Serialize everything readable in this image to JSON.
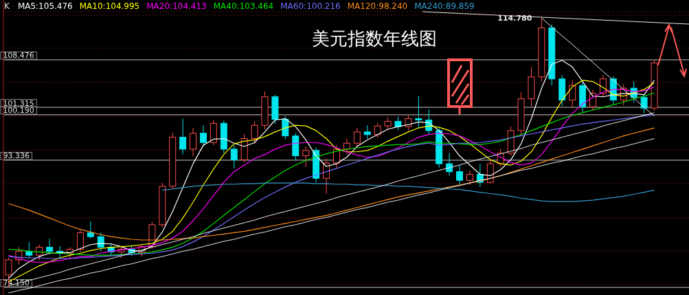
{
  "chart_data": {
    "type": "candlestick",
    "title": "美元指数年线图",
    "legend_title": "K",
    "legend": "top left",
    "grid": "y",
    "categories": [
      null,
      null,
      null,
      null,
      null,
      null,
      null,
      null,
      null,
      null,
      null,
      null,
      null,
      null,
      null,
      null,
      null,
      null,
      null,
      null,
      null,
      null,
      null,
      null,
      null,
      null,
      null,
      null,
      null,
      null,
      null,
      null,
      null,
      null,
      null,
      null,
      null,
      null,
      null,
      null,
      null,
      null,
      null,
      null,
      null,
      null,
      null,
      null,
      null,
      null,
      null,
      null,
      null,
      null,
      null,
      null,
      null,
      null,
      null,
      null,
      null,
      null,
      null,
      null
    ],
    "ohlc": [
      [
        76.02,
        78.6,
        74.15,
        78.3
      ],
      [
        78.3,
        80.2,
        77.6,
        79.6
      ],
      [
        79.6,
        81.0,
        78.5,
        79.0
      ],
      [
        79.0,
        80.6,
        78.2,
        80.2
      ],
      [
        80.2,
        81.5,
        79.2,
        79.6
      ],
      [
        79.6,
        80.4,
        78.6,
        79.3
      ],
      [
        79.3,
        80.2,
        78.4,
        79.9
      ],
      [
        79.9,
        82.8,
        79.5,
        82.4
      ],
      [
        82.4,
        84.1,
        81.5,
        81.8
      ],
      [
        81.8,
        82.4,
        79.6,
        80.2
      ],
      [
        80.2,
        80.8,
        79.0,
        79.5
      ],
      [
        79.5,
        80.3,
        78.6,
        79.9
      ],
      [
        79.9,
        80.5,
        78.9,
        79.4
      ],
      [
        79.4,
        80.6,
        78.8,
        80.3
      ],
      [
        80.3,
        84.0,
        80.0,
        83.6
      ],
      [
        83.6,
        89.9,
        83.2,
        89.4
      ],
      [
        89.4,
        97.5,
        89.0,
        96.8
      ],
      [
        96.8,
        99.6,
        94.2,
        95.0
      ],
      [
        95.0,
        98.2,
        93.9,
        97.4
      ],
      [
        97.4,
        98.6,
        95.4,
        96.0
      ],
      [
        96.0,
        99.4,
        95.6,
        98.9
      ],
      [
        98.9,
        99.3,
        94.4,
        95.0
      ],
      [
        95.0,
        95.6,
        92.1,
        93.4
      ],
      [
        93.4,
        97.3,
        93.0,
        96.6
      ],
      [
        96.6,
        99.2,
        95.8,
        98.6
      ],
      [
        98.6,
        103.7,
        98.0,
        102.9
      ],
      [
        102.9,
        103.2,
        98.8,
        99.5
      ],
      [
        99.5,
        100.0,
        96.5,
        97.0
      ],
      [
        97.0,
        97.4,
        93.3,
        94.0
      ],
      [
        94.0,
        95.4,
        92.3,
        94.8
      ],
      [
        94.8,
        95.2,
        90.0,
        90.6
      ],
      [
        90.6,
        93.6,
        88.3,
        92.9
      ],
      [
        92.9,
        95.6,
        92.2,
        95.0
      ],
      [
        95.0,
        96.6,
        94.2,
        95.9
      ],
      [
        95.9,
        98.2,
        95.3,
        97.6
      ],
      [
        97.6,
        98.6,
        96.6,
        97.2
      ],
      [
        97.2,
        99.0,
        96.7,
        98.5
      ],
      [
        98.5,
        99.8,
        97.9,
        99.2
      ],
      [
        99.2,
        99.9,
        97.9,
        98.4
      ],
      [
        98.4,
        100.1,
        97.8,
        99.6
      ],
      [
        99.6,
        103.0,
        98.2,
        99.4
      ],
      [
        99.4,
        101.0,
        97.2,
        97.8
      ],
      [
        97.8,
        98.2,
        92.2,
        92.8
      ],
      [
        92.8,
        94.4,
        91.0,
        91.6
      ],
      [
        91.6,
        92.6,
        89.7,
        90.3
      ],
      [
        90.3,
        91.8,
        89.6,
        91.2
      ],
      [
        91.2,
        92.8,
        89.3,
        90.0
      ],
      [
        90.0,
        93.4,
        89.8,
        92.8
      ],
      [
        92.8,
        95.0,
        92.4,
        94.4
      ],
      [
        94.4,
        98.4,
        94.0,
        97.8
      ],
      [
        97.8,
        103.6,
        97.0,
        102.6
      ],
      [
        102.6,
        107.4,
        101.4,
        105.9
      ],
      [
        105.9,
        114.78,
        105.2,
        113.3
      ],
      [
        113.3,
        113.8,
        104.6,
        105.6
      ],
      [
        105.6,
        106.2,
        101.5,
        102.4
      ],
      [
        102.4,
        105.4,
        101.2,
        104.6
      ],
      [
        104.6,
        105.2,
        100.6,
        101.4
      ],
      [
        101.4,
        104.0,
        100.8,
        103.4
      ],
      [
        103.4,
        106.2,
        102.8,
        105.6
      ],
      [
        105.6,
        106.0,
        101.8,
        102.4
      ],
      [
        102.4,
        104.8,
        101.6,
        104.2
      ],
      [
        104.2,
        105.2,
        102.0,
        102.8
      ],
      [
        102.8,
        103.2,
        100.4,
        101.2
      ],
      [
        101.2,
        108.4,
        100.8,
        108.0
      ]
    ],
    "series": [
      {
        "name": "MA5:105.476",
        "type": "line",
        "color": "#ffffff",
        "values": [
          75.5,
          77.0,
          78.0,
          78.8,
          79.3,
          79.4,
          79.4,
          80.0,
          80.6,
          80.8,
          80.7,
          80.3,
          79.7,
          79.6,
          80.4,
          82.5,
          85.6,
          89.2,
          92.8,
          95.6,
          96.5,
          96.6,
          95.9,
          95.4,
          96.0,
          97.6,
          99.4,
          99.6,
          98.4,
          96.4,
          94.0,
          92.4,
          92.8,
          93.8,
          95.4,
          96.4,
          97.2,
          98.0,
          98.4,
          98.7,
          99.1,
          99.0,
          97.8,
          96.0,
          94.0,
          92.6,
          91.2,
          91.0,
          91.9,
          93.4,
          95.8,
          99.6,
          104.2,
          107.8,
          108.4,
          107.4,
          105.2,
          103.0,
          102.9,
          103.2,
          103.4,
          103.4,
          103.2,
          105.4
        ]
      },
      {
        "name": "MA10:104.995",
        "type": "line",
        "color": "#ffff00",
        "values": [
          75.0,
          75.8,
          76.6,
          77.4,
          78.0,
          78.6,
          79.0,
          79.3,
          79.7,
          80.0,
          80.2,
          80.3,
          80.4,
          80.6,
          80.8,
          81.4,
          82.6,
          84.6,
          87.0,
          89.6,
          92.0,
          94.2,
          95.8,
          96.2,
          96.4,
          96.9,
          97.6,
          98.2,
          98.6,
          98.5,
          97.8,
          96.6,
          95.0,
          94.6,
          94.6,
          94.8,
          95.4,
          96.2,
          96.9,
          97.6,
          98.2,
          98.5,
          98.3,
          97.8,
          96.9,
          95.8,
          94.6,
          93.4,
          92.8,
          92.6,
          93.2,
          94.6,
          97.0,
          99.8,
          102.4,
          104.4,
          105.4,
          105.2,
          104.3,
          103.2,
          103.0,
          103.5,
          104.0,
          105.0
        ]
      },
      {
        "name": "MA20:104.413",
        "type": "line",
        "color": "#ff00ff",
        "values": [
          79.0,
          78.5,
          78.1,
          77.9,
          78.0,
          78.2,
          78.5,
          78.8,
          78.8,
          79.3,
          79.6,
          79.8,
          80.0,
          80.2,
          80.5,
          80.9,
          81.6,
          82.6,
          84.2,
          86.0,
          88.0,
          90.0,
          91.6,
          92.6,
          93.6,
          94.2,
          95.0,
          95.6,
          95.9,
          96.0,
          96.0,
          95.7,
          95.2,
          94.6,
          94.1,
          93.8,
          93.9,
          94.5,
          95.2,
          96.0,
          96.8,
          97.2,
          97.4,
          97.3,
          97.0,
          96.3,
          95.5,
          94.6,
          93.8,
          93.0,
          92.6,
          92.9,
          94.2,
          96.2,
          98.4,
          100.4,
          101.8,
          102.8,
          103.6,
          104.0,
          104.0,
          103.7,
          103.8,
          104.4
        ]
      },
      {
        "name": "MA40:103.464",
        "type": "line",
        "color": "#00e600",
        "values": [
          79.9,
          79.8,
          79.6,
          79.5,
          79.4,
          79.3,
          79.2,
          79.1,
          79.0,
          79.0,
          79.0,
          79.1,
          79.2,
          79.3,
          79.5,
          79.8,
          80.2,
          80.8,
          81.6,
          82.6,
          83.8,
          85.0,
          86.2,
          87.4,
          88.6,
          89.8,
          90.8,
          91.8,
          92.6,
          93.3,
          93.8,
          94.3,
          94.7,
          95.0,
          95.2,
          95.4,
          95.5,
          95.6,
          95.7,
          95.7,
          95.8,
          96.1,
          95.9,
          95.9,
          95.8,
          95.7,
          95.7,
          95.9,
          96.2,
          96.7,
          97.2,
          97.8,
          98.4,
          99.0,
          99.6,
          100.1,
          100.5,
          100.9,
          101.3,
          101.7,
          102.1,
          102.6,
          103.0,
          103.5
        ]
      },
      {
        "name": "MA60:100.216",
        "type": "line",
        "color": "#7070ff",
        "values": [
          78.8,
          78.7,
          78.6,
          78.6,
          78.5,
          78.5,
          78.5,
          78.6,
          78.7,
          78.8,
          78.9,
          79.0,
          79.1,
          79.2,
          79.3,
          79.5,
          79.8,
          80.3,
          81.0,
          81.8,
          82.8,
          83.8,
          84.8,
          85.8,
          86.8,
          87.7,
          88.5,
          89.3,
          90.0,
          90.6,
          91.1,
          91.6,
          92.1,
          92.6,
          93.1,
          93.6,
          94.1,
          94.6,
          95.0,
          95.4,
          95.7,
          95.9,
          95.6,
          95.7,
          95.9,
          95.9,
          96.0,
          96.2,
          96.4,
          96.7,
          97.0,
          97.3,
          97.6,
          97.9,
          98.2,
          98.5,
          98.8,
          99.0,
          99.2,
          99.4,
          99.6,
          99.8,
          100.0,
          100.2
        ]
      },
      {
        "name": "MA120:98.240",
        "type": "line",
        "color": "#ff8c1a",
        "values": [
          86.8,
          86.3,
          85.8,
          85.2,
          84.6,
          84.0,
          83.4,
          82.9,
          82.5,
          82.1,
          81.8,
          81.6,
          81.4,
          81.3,
          81.3,
          81.3,
          81.4,
          81.5,
          81.6,
          81.8,
          82.0,
          82.2,
          82.4,
          82.6,
          82.9,
          83.2,
          83.5,
          83.8,
          84.1,
          84.4,
          84.7,
          85.0,
          85.4,
          85.8,
          86.2,
          86.6,
          87.0,
          87.4,
          87.8,
          88.1,
          88.4,
          88.7,
          89.0,
          89.3,
          89.6,
          89.9,
          90.2,
          90.6,
          91.0,
          91.5,
          92.0,
          92.5,
          93.0,
          93.5,
          94.0,
          94.5,
          95.0,
          95.5,
          96.0,
          96.5,
          97.0,
          97.4,
          97.8,
          98.2
        ]
      },
      {
        "name": "MA240:89.859",
        "type": "line",
        "color": "#3399cc",
        "values": [
          null,
          null,
          null,
          null,
          null,
          null,
          null,
          null,
          null,
          null,
          null,
          null,
          null,
          null,
          null,
          88.8,
          89.0,
          89.2,
          89.4,
          89.5,
          89.6,
          89.7,
          89.7,
          89.8,
          89.8,
          89.9,
          89.9,
          89.9,
          89.9,
          89.9,
          89.8,
          89.8,
          89.7,
          89.7,
          89.6,
          89.6,
          89.5,
          89.5,
          89.4,
          89.4,
          89.3,
          89.2,
          89.1,
          89.0,
          88.9,
          88.7,
          88.5,
          88.3,
          88.1,
          87.9,
          87.6,
          87.4,
          87.2,
          87.1,
          87.1,
          87.1,
          87.2,
          87.3,
          87.5,
          87.7,
          87.9,
          88.2,
          88.5,
          88.8
        ]
      },
      {
        "type": "line",
        "color": "#e8e8e8",
        "values": [
          74.4,
          74.8,
          75.2,
          75.6,
          76.0,
          76.4,
          76.9,
          77.3,
          77.7,
          78.1,
          78.5,
          78.9,
          79.4,
          79.8,
          80.2,
          80.6,
          81.0,
          81.4,
          81.8,
          82.3,
          82.7,
          83.1,
          83.5,
          83.9,
          84.3,
          84.8,
          85.2,
          85.6,
          86.0,
          86.4,
          86.8,
          87.2,
          87.7,
          88.1,
          88.5,
          88.9,
          89.3,
          89.7,
          90.2,
          90.6,
          91.0,
          91.4,
          91.8,
          92.2,
          92.6,
          93.1,
          93.5,
          93.9,
          94.3,
          94.7,
          95.1,
          95.6,
          96.0,
          96.4,
          96.8,
          97.2,
          97.6,
          98.0,
          98.5,
          98.9,
          99.3,
          99.7,
          100.1,
          100.5
        ]
      },
      {
        "type": "line",
        "color": "#e8e8e8",
        "values": [
          73.3,
          73.7,
          74.0,
          74.4,
          74.8,
          75.2,
          75.5,
          75.9,
          76.3,
          76.6,
          77.0,
          77.4,
          77.7,
          78.1,
          78.5,
          78.8,
          79.2,
          79.6,
          79.9,
          80.3,
          80.7,
          81.1,
          81.4,
          81.8,
          82.2,
          82.5,
          82.9,
          83.3,
          83.6,
          84.0,
          84.4,
          84.7,
          85.1,
          85.5,
          85.9,
          86.2,
          86.6,
          87.0,
          87.3,
          87.7,
          88.1,
          88.4,
          88.8,
          89.2,
          89.5,
          89.9,
          90.3,
          90.6,
          91.0,
          91.4,
          91.8,
          92.1,
          92.5,
          92.9,
          93.2,
          93.6,
          94.0,
          94.3,
          94.7,
          95.1,
          95.4,
          95.8,
          96.2,
          96.6
        ]
      },
      {
        "type": "line",
        "color": "#e8e8e8",
        "values": [
          null,
          null,
          null,
          null,
          null,
          null,
          null,
          null,
          null,
          null,
          null,
          null,
          null,
          null,
          null,
          null,
          null,
          null,
          null,
          null,
          null,
          null,
          null,
          null,
          null,
          null,
          null,
          null,
          null,
          null,
          null,
          null,
          null,
          null,
          null,
          null,
          null,
          null,
          null,
          null,
          null,
          null,
          null,
          null,
          null,
          null,
          null,
          null,
          null,
          null,
          null,
          null,
          114.8,
          113.4,
          112.1,
          110.8,
          109.4,
          108.1,
          106.7,
          105.4,
          104.0,
          102.7,
          101.3,
          100.0
        ]
      }
    ],
    "ylim": [
      73.0,
      117.5
    ],
    "yticks": [
      {
        "value": 115.74,
        "label": null
      },
      {
        "value": 110.24,
        "label": null
      },
      {
        "value": 108.476,
        "label": "108.476"
      },
      {
        "value": 105.06,
        "label": null
      },
      {
        "value": 101.315,
        "label": "101.315"
      },
      {
        "value": 100.19,
        "label": "100.190"
      },
      {
        "value": 99.97,
        "label": null
      },
      {
        "value": 94.89,
        "label": null
      },
      {
        "value": 93.336,
        "label": "93.336"
      },
      {
        "value": 89.81,
        "label": null
      },
      {
        "value": 84.63,
        "label": null
      },
      {
        "value": 79.65,
        "label": null
      },
      {
        "value": 74.57,
        "label": null
      },
      {
        "value": 74.15,
        "label": "74.150"
      }
    ],
    "annotations": [
      "114.780"
    ]
  }
}
